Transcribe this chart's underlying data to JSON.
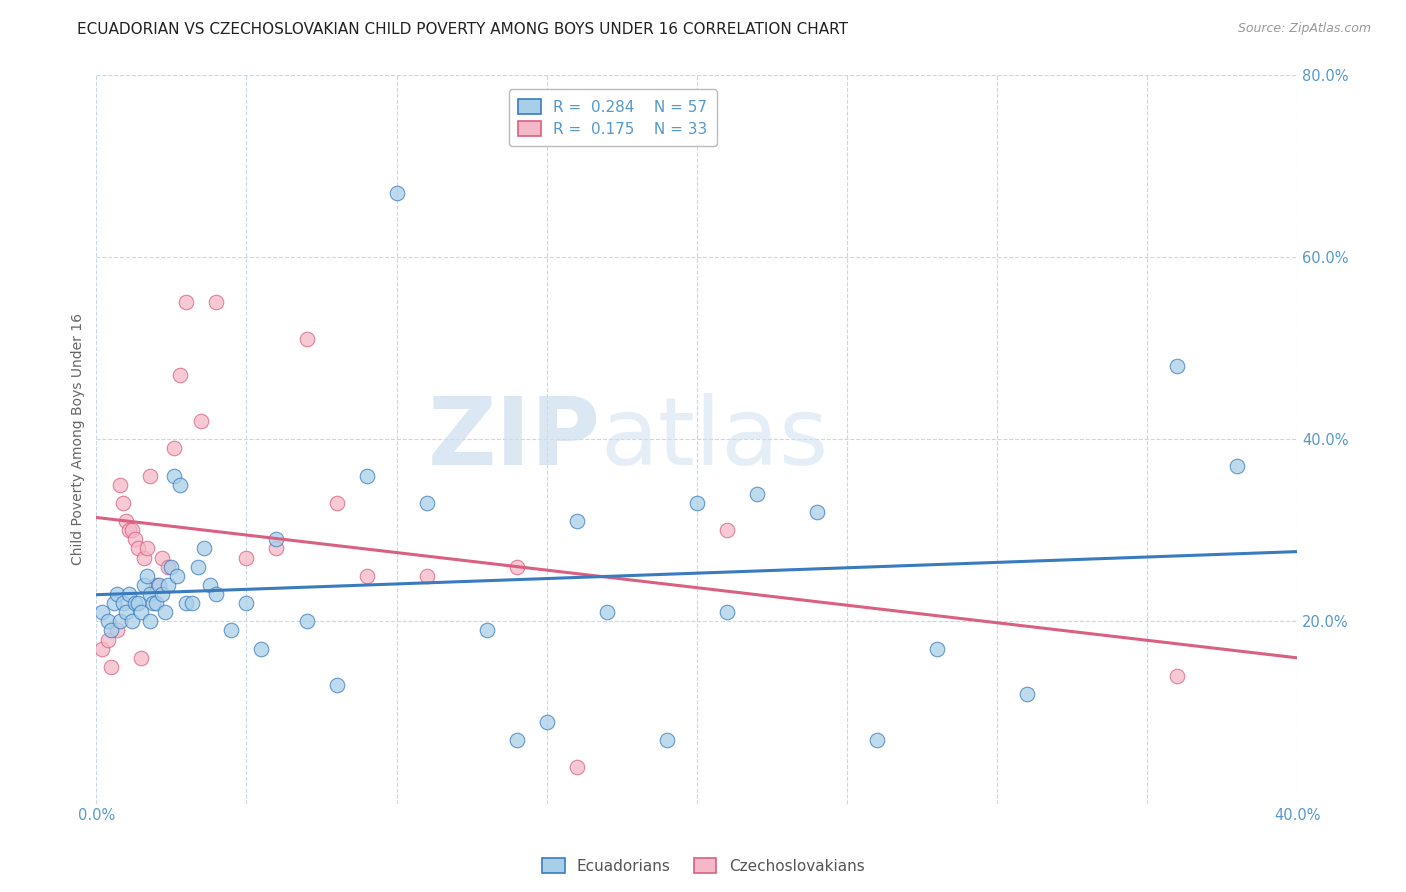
{
  "title": "ECUADORIAN VS CZECHOSLOVAKIAN CHILD POVERTY AMONG BOYS UNDER 16 CORRELATION CHART",
  "source": "Source: ZipAtlas.com",
  "ylabel": "Child Poverty Among Boys Under 16",
  "xlim": [
    0.0,
    0.4
  ],
  "ylim": [
    0.0,
    0.8
  ],
  "xticks": [
    0.0,
    0.05,
    0.1,
    0.15,
    0.2,
    0.25,
    0.3,
    0.35,
    0.4
  ],
  "yticks": [
    0.0,
    0.2,
    0.4,
    0.6,
    0.8
  ],
  "ecuadorian_color": "#a8cfe8",
  "czechoslovakian_color": "#f5b8c8",
  "line_ecuadorian_color": "#3a7bbf",
  "line_czechoslovakian_color": "#d96080",
  "tick_color": "#5599cc",
  "R_ecuadorian": 0.284,
  "N_ecuadorian": 57,
  "R_czechoslovakian": 0.175,
  "N_czechoslovakian": 33,
  "ecuadorian_x": [
    0.002,
    0.004,
    0.005,
    0.006,
    0.007,
    0.008,
    0.009,
    0.01,
    0.011,
    0.012,
    0.013,
    0.014,
    0.015,
    0.016,
    0.017,
    0.018,
    0.018,
    0.019,
    0.02,
    0.021,
    0.022,
    0.023,
    0.024,
    0.025,
    0.026,
    0.027,
    0.028,
    0.03,
    0.032,
    0.034,
    0.036,
    0.038,
    0.04,
    0.045,
    0.05,
    0.055,
    0.06,
    0.07,
    0.08,
    0.09,
    0.1,
    0.11,
    0.13,
    0.14,
    0.15,
    0.16,
    0.17,
    0.19,
    0.2,
    0.21,
    0.22,
    0.24,
    0.26,
    0.28,
    0.31,
    0.36,
    0.38
  ],
  "ecuadorian_y": [
    0.21,
    0.2,
    0.19,
    0.22,
    0.23,
    0.2,
    0.22,
    0.21,
    0.23,
    0.2,
    0.22,
    0.22,
    0.21,
    0.24,
    0.25,
    0.23,
    0.2,
    0.22,
    0.22,
    0.24,
    0.23,
    0.21,
    0.24,
    0.26,
    0.36,
    0.25,
    0.35,
    0.22,
    0.22,
    0.26,
    0.28,
    0.24,
    0.23,
    0.19,
    0.22,
    0.17,
    0.29,
    0.2,
    0.13,
    0.36,
    0.67,
    0.33,
    0.19,
    0.07,
    0.09,
    0.31,
    0.21,
    0.07,
    0.33,
    0.21,
    0.34,
    0.32,
    0.07,
    0.17,
    0.12,
    0.48,
    0.37
  ],
  "czechoslovakian_x": [
    0.002,
    0.004,
    0.005,
    0.007,
    0.008,
    0.009,
    0.01,
    0.011,
    0.012,
    0.013,
    0.014,
    0.015,
    0.016,
    0.017,
    0.018,
    0.02,
    0.022,
    0.024,
    0.026,
    0.028,
    0.03,
    0.035,
    0.04,
    0.05,
    0.06,
    0.07,
    0.08,
    0.09,
    0.11,
    0.14,
    0.16,
    0.21,
    0.36
  ],
  "czechoslovakian_y": [
    0.17,
    0.18,
    0.15,
    0.19,
    0.35,
    0.33,
    0.31,
    0.3,
    0.3,
    0.29,
    0.28,
    0.16,
    0.27,
    0.28,
    0.36,
    0.24,
    0.27,
    0.26,
    0.39,
    0.47,
    0.55,
    0.42,
    0.55,
    0.27,
    0.28,
    0.51,
    0.33,
    0.25,
    0.25,
    0.26,
    0.04,
    0.3,
    0.14
  ],
  "watermark_zip": "ZIP",
  "watermark_atlas": "atlas",
  "background_color": "#ffffff",
  "grid_color": "#c8d8e8",
  "title_fontsize": 11,
  "axis_label_fontsize": 10,
  "tick_fontsize": 10.5,
  "legend_fontsize": 11,
  "scatter_size": 110,
  "scatter_alpha": 0.75
}
